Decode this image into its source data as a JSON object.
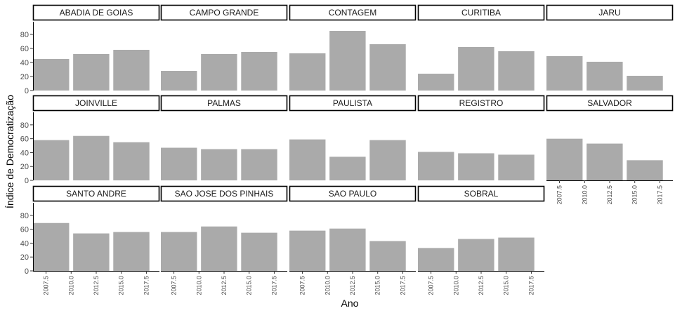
{
  "chart_data": {
    "type": "bar",
    "layout": "facet-grid",
    "xlabel": "Ano",
    "ylabel": "Índice de Democratização",
    "ylim": [
      0,
      90
    ],
    "y_ticks": [
      0,
      20,
      40,
      60,
      80
    ],
    "x_domain": [
      2006.2,
      2018.8
    ],
    "x_ticks": [
      "2007.5",
      "2010.0",
      "2012.5",
      "2015.0",
      "2017.5"
    ],
    "bar_color": "#aaaaaa",
    "grid": false,
    "years": [
      2008,
      2012,
      2016
    ],
    "panels": [
      {
        "name": "ABADIA DE GOIAS",
        "values": [
          45,
          52,
          58
        ]
      },
      {
        "name": "CAMPO GRANDE",
        "values": [
          28,
          52,
          55
        ]
      },
      {
        "name": "CONTAGEM",
        "values": [
          53,
          85,
          66
        ]
      },
      {
        "name": "CURITIBA",
        "values": [
          24,
          62,
          56
        ]
      },
      {
        "name": "JARU",
        "values": [
          49,
          41,
          21
        ]
      },
      {
        "name": "JOINVILLE",
        "values": [
          58,
          64,
          55
        ]
      },
      {
        "name": "PALMAS",
        "values": [
          47,
          45,
          45
        ]
      },
      {
        "name": "PAULISTA",
        "values": [
          59,
          34,
          58
        ]
      },
      {
        "name": "REGISTRO",
        "values": [
          41,
          39,
          37
        ]
      },
      {
        "name": "SALVADOR",
        "values": [
          60,
          53,
          29
        ]
      },
      {
        "name": "SANTO ANDRE",
        "values": [
          69,
          54,
          56
        ]
      },
      {
        "name": "SAO JOSE DOS PINHAIS",
        "values": [
          56,
          64,
          55
        ]
      },
      {
        "name": "SAO PAULO",
        "values": [
          58,
          61,
          43
        ]
      },
      {
        "name": "SOBRAL",
        "values": [
          33,
          46,
          48
        ]
      }
    ]
  }
}
